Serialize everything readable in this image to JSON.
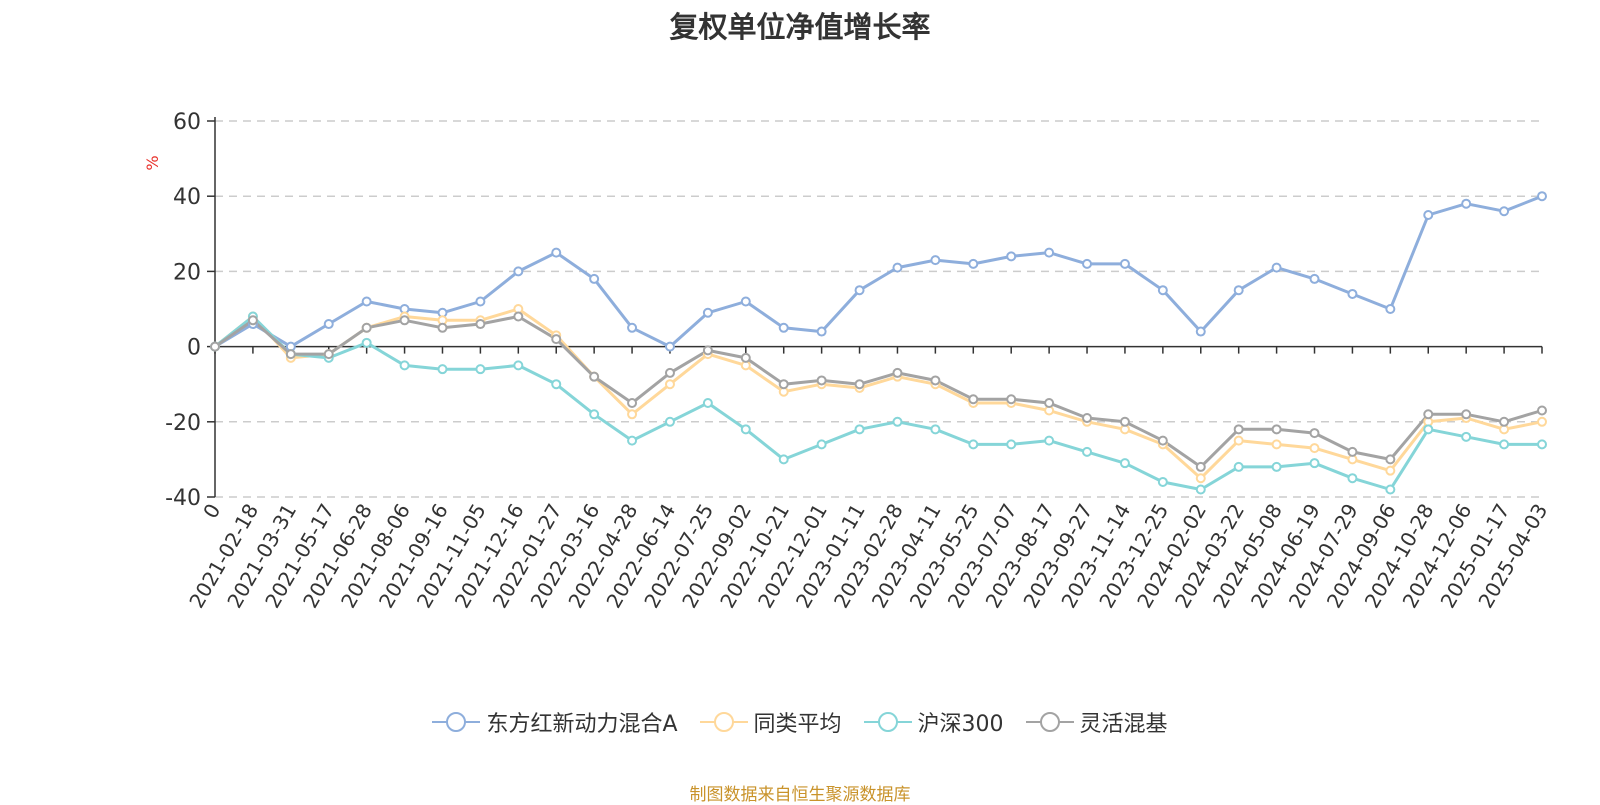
{
  "chart_data": {
    "type": "line",
    "title": "复权单位净值增长率",
    "ylabel": "%",
    "ylim": [
      -40,
      60
    ],
    "yticks": [
      "60",
      "40",
      "20",
      "0",
      "-20",
      "-40"
    ],
    "x": [
      "0",
      "2021-02-18",
      "2021-03-31",
      "2021-05-17",
      "2021-06-28",
      "2021-08-06",
      "2021-09-16",
      "2021-11-05",
      "2021-12-16",
      "2022-01-27",
      "2022-03-16",
      "2022-04-28",
      "2022-06-14",
      "2022-07-25",
      "2022-09-02",
      "2022-10-21",
      "2022-12-01",
      "2023-01-11",
      "2023-02-28",
      "2023-04-11",
      "2023-05-25",
      "2023-07-07",
      "2023-08-17",
      "2023-09-27",
      "2023-11-14",
      "2023-12-25",
      "2024-02-02",
      "2024-03-22",
      "2024-05-08",
      "2024-06-19",
      "2024-07-29",
      "2024-09-06",
      "2024-10-28",
      "2024-12-06",
      "2025-01-17",
      "2025-04-03"
    ],
    "grid": "horizontal-dashed",
    "legend_position": "bottom",
    "series": [
      {
        "name": "东方红新动力混合A",
        "color": "#8eaedc",
        "values": [
          0,
          6,
          0,
          6,
          12,
          10,
          9,
          12,
          20,
          25,
          18,
          5,
          0,
          9,
          12,
          5,
          4,
          15,
          21,
          23,
          22,
          24,
          25,
          22,
          22,
          15,
          4,
          15,
          21,
          18,
          14,
          10,
          35,
          38,
          36,
          40
        ]
      },
      {
        "name": "同类平均",
        "color": "#ffd89a",
        "values": [
          0,
          8,
          -3,
          -2,
          5,
          8,
          7,
          7,
          10,
          3,
          -8,
          -18,
          -10,
          -2,
          -5,
          -12,
          -10,
          -11,
          -8,
          -10,
          -15,
          -15,
          -17,
          -20,
          -22,
          -26,
          -35,
          -25,
          -26,
          -27,
          -30,
          -33,
          -20,
          -19,
          -22,
          -20
        ]
      },
      {
        "name": "沪深300",
        "color": "#85d5d8",
        "values": [
          0,
          8,
          -2,
          -3,
          1,
          -5,
          -6,
          -6,
          -5,
          -10,
          -18,
          -25,
          -20,
          -15,
          -22,
          -30,
          -26,
          -22,
          -20,
          -22,
          -26,
          -26,
          -25,
          -28,
          -31,
          -36,
          -38,
          -32,
          -32,
          -31,
          -35,
          -38,
          -22,
          -24,
          -26,
          -26
        ]
      },
      {
        "name": "灵活混基",
        "color": "#a3a3a3",
        "values": [
          0,
          7,
          -2,
          -2,
          5,
          7,
          5,
          6,
          8,
          2,
          -8,
          -15,
          -7,
          -1,
          -3,
          -10,
          -9,
          -10,
          -7,
          -9,
          -14,
          -14,
          -15,
          -19,
          -20,
          -25,
          -32,
          -22,
          -22,
          -23,
          -28,
          -30,
          -18,
          -18,
          -20,
          -17
        ]
      }
    ]
  },
  "source_text": "制图数据来自恒生聚源数据库"
}
